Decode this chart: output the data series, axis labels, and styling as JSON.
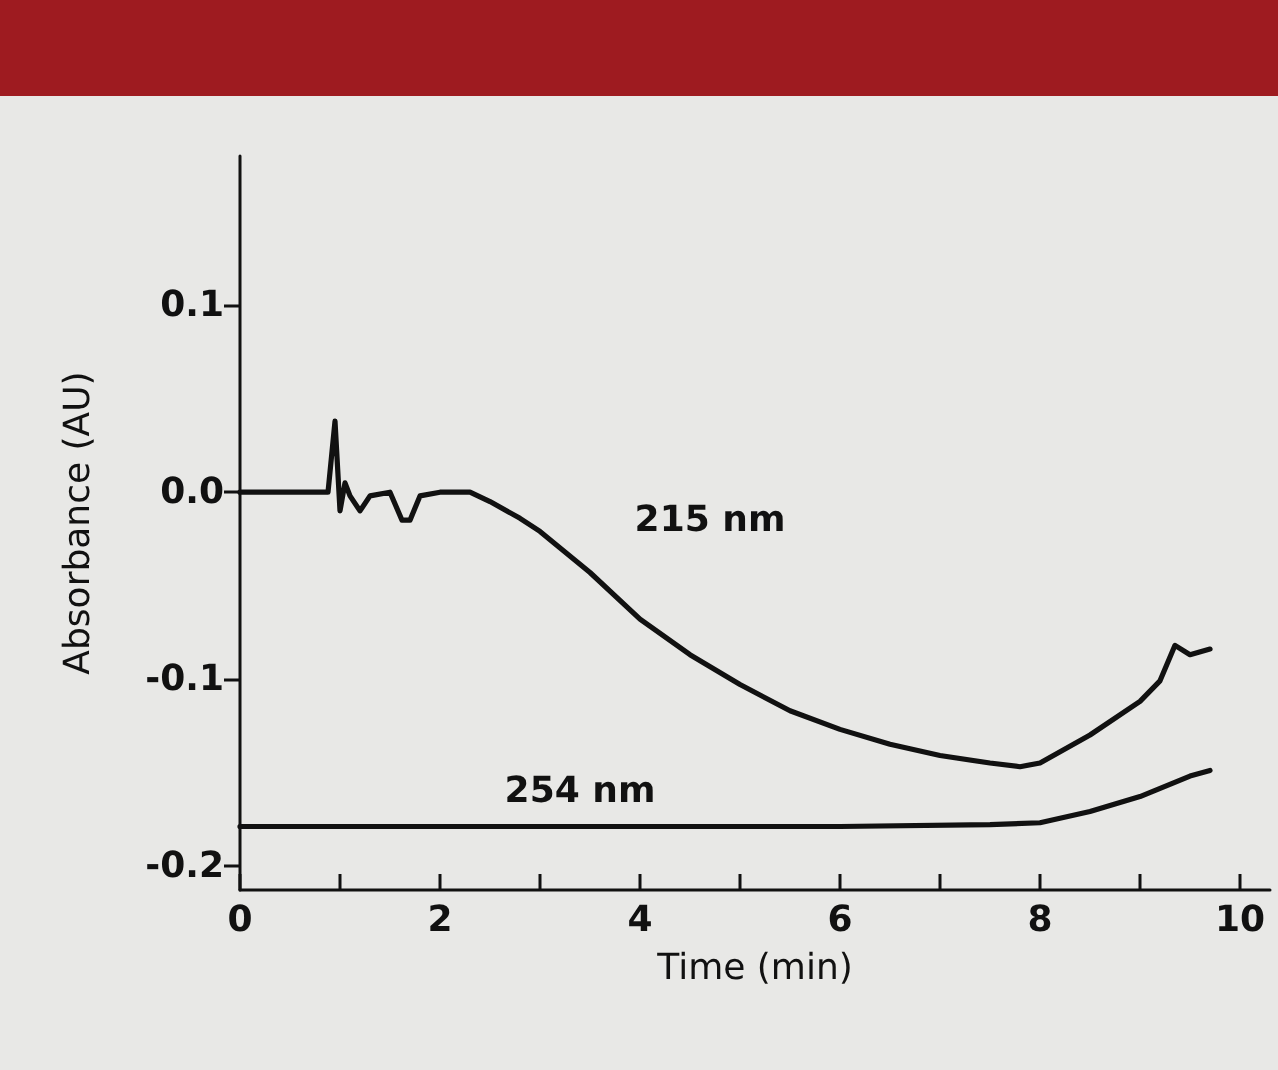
{
  "chart_data": {
    "type": "line",
    "xlabel": "Time (min)",
    "ylabel": "Absorbance (AU)",
    "series": [
      {
        "name": "215 nm",
        "color": "#111111",
        "x": [
          0,
          0.5,
          0.88,
          0.95,
          1.0,
          1.05,
          1.1,
          1.2,
          1.3,
          1.5,
          1.62,
          1.7,
          1.8,
          2.0,
          2.3,
          2.5,
          2.8,
          3.0,
          3.5,
          4.0,
          4.5,
          5.0,
          5.5,
          6.0,
          6.5,
          7.0,
          7.5,
          7.8,
          8.0,
          8.5,
          9.0,
          9.2,
          9.35,
          9.5,
          9.7
        ],
        "values": [
          0,
          0,
          0,
          0.038,
          -0.01,
          0.005,
          -0.002,
          -0.01,
          -0.002,
          0,
          -0.015,
          -0.015,
          -0.002,
          0,
          0,
          -0.005,
          -0.014,
          -0.021,
          -0.043,
          -0.068,
          -0.087,
          -0.103,
          -0.117,
          -0.127,
          -0.135,
          -0.141,
          -0.145,
          -0.147,
          -0.145,
          -0.13,
          -0.112,
          -0.101,
          -0.082,
          -0.087,
          -0.084
        ]
      },
      {
        "name": "254 nm",
        "color": "#111111",
        "x": [
          0,
          2,
          4,
          6,
          7.5,
          8.0,
          8.5,
          9.0,
          9.5,
          9.7
        ],
        "values": [
          -0.179,
          -0.179,
          -0.179,
          -0.179,
          -0.178,
          -0.177,
          -0.171,
          -0.163,
          -0.152,
          -0.149
        ]
      }
    ],
    "xlim": [
      0,
      10.3
    ],
    "ylim": [
      -0.213,
      0.18
    ],
    "xticks": [
      0,
      {
        "value": 1,
        "label": null
      },
      2,
      {
        "value": 3,
        "label": null
      },
      4,
      {
        "value": 5,
        "label": null
      },
      6,
      {
        "value": 7,
        "label": null
      },
      8,
      {
        "value": 9,
        "label": null
      },
      10
    ],
    "yticks": [
      -0.2,
      -0.1,
      {
        "value": 0,
        "label": "0.0"
      },
      0.1
    ],
    "grid": false,
    "legend": false,
    "marker": "none",
    "line_style": "solid"
  }
}
